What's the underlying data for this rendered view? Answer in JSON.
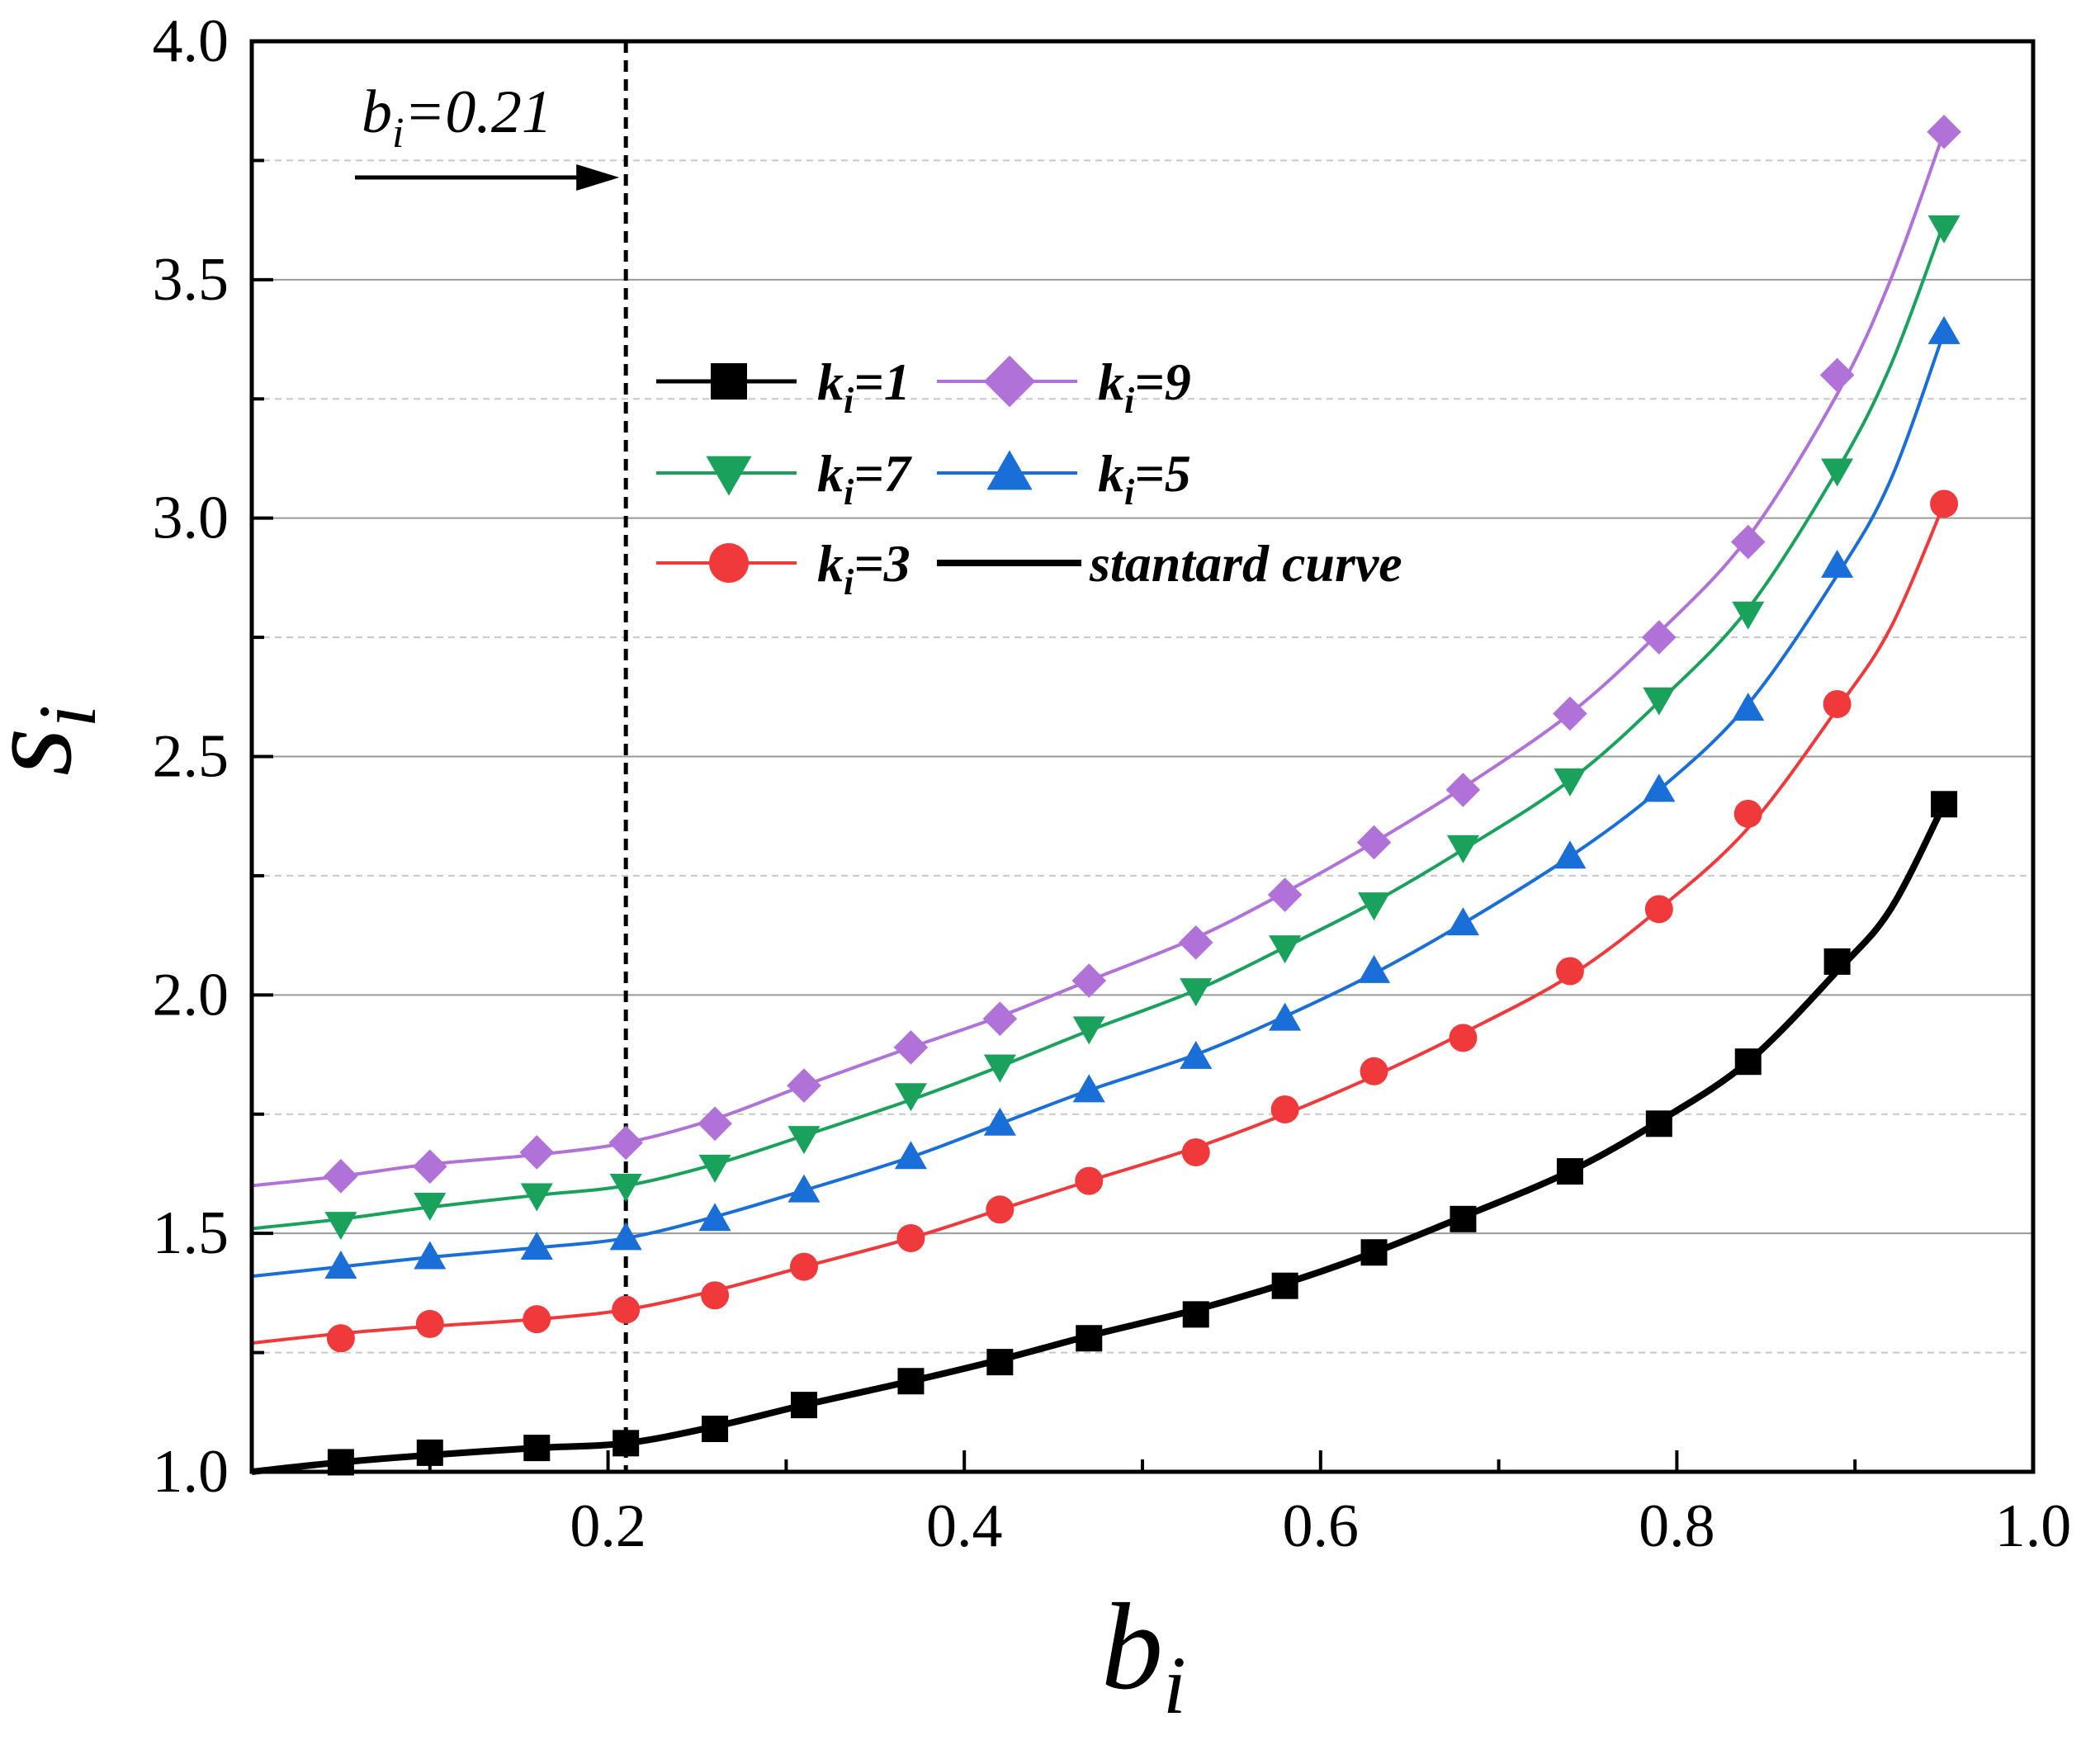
{
  "chart_data": {
    "type": "line",
    "xlabel": "b",
    "xlabel_sub": "i",
    "ylabel": "s",
    "ylabel_sub": "i",
    "xlim": [
      0.0,
      1.0
    ],
    "ylim": [
      1.0,
      4.0
    ],
    "x_ticks": [
      0.2,
      0.4,
      0.6,
      0.8,
      1.0
    ],
    "x_tick_labels": [
      "0.2",
      "0.4",
      "0.6",
      "0.8",
      "1.0"
    ],
    "y_ticks": [
      1.0,
      1.5,
      2.0,
      2.5,
      3.0,
      3.5,
      4.0
    ],
    "y_tick_labels": [
      "1.0",
      "1.5",
      "2.0",
      "2.5",
      "3.0",
      "3.5",
      "4.0"
    ],
    "grid": true,
    "x": [
      0.05,
      0.1,
      0.16,
      0.21,
      0.26,
      0.31,
      0.37,
      0.42,
      0.47,
      0.53,
      0.58,
      0.63,
      0.68,
      0.74,
      0.79,
      0.84,
      0.89,
      0.95
    ],
    "series": [
      {
        "name": "k",
        "sub": "i",
        "label_rest": "=1",
        "color": "#000000",
        "marker": "square",
        "values": [
          1.02,
          1.04,
          1.05,
          1.06,
          1.09,
          1.14,
          1.19,
          1.23,
          1.28,
          1.33,
          1.39,
          1.46,
          1.53,
          1.63,
          1.73,
          1.86,
          2.07,
          2.4
        ],
        "curve": [
          [
            0.0,
            1.0
          ],
          [
            0.05,
            1.02
          ],
          [
            0.1,
            1.035
          ],
          [
            0.16,
            1.05
          ],
          [
            0.21,
            1.06
          ],
          [
            0.26,
            1.095
          ],
          [
            0.31,
            1.14
          ],
          [
            0.37,
            1.19
          ],
          [
            0.42,
            1.235
          ],
          [
            0.47,
            1.285
          ],
          [
            0.53,
            1.34
          ],
          [
            0.58,
            1.395
          ],
          [
            0.63,
            1.46
          ],
          [
            0.68,
            1.535
          ],
          [
            0.74,
            1.63
          ],
          [
            0.79,
            1.735
          ],
          [
            0.84,
            1.86
          ],
          [
            0.89,
            2.05
          ],
          [
            0.92,
            2.18
          ],
          [
            0.95,
            2.4
          ]
        ]
      },
      {
        "name": "k",
        "sub": "i",
        "label_rest": "=3",
        "color": "#f0393a",
        "marker": "circle",
        "values": [
          1.28,
          1.31,
          1.32,
          1.34,
          1.37,
          1.43,
          1.49,
          1.55,
          1.61,
          1.67,
          1.76,
          1.84,
          1.91,
          2.05,
          2.18,
          2.38,
          2.61,
          3.03
        ],
        "curve": [
          [
            0.0,
            1.27
          ],
          [
            0.05,
            1.29
          ],
          [
            0.1,
            1.305
          ],
          [
            0.16,
            1.32
          ],
          [
            0.21,
            1.34
          ],
          [
            0.26,
            1.38
          ],
          [
            0.31,
            1.43
          ],
          [
            0.37,
            1.49
          ],
          [
            0.42,
            1.55
          ],
          [
            0.47,
            1.61
          ],
          [
            0.53,
            1.68
          ],
          [
            0.58,
            1.75
          ],
          [
            0.63,
            1.83
          ],
          [
            0.68,
            1.92
          ],
          [
            0.74,
            2.04
          ],
          [
            0.79,
            2.18
          ],
          [
            0.84,
            2.35
          ],
          [
            0.89,
            2.6
          ],
          [
            0.92,
            2.77
          ],
          [
            0.95,
            3.03
          ]
        ]
      },
      {
        "name": "k",
        "sub": "i",
        "label_rest": "=5",
        "color": "#1a6ed8",
        "marker": "triangle-up",
        "values": [
          1.43,
          1.45,
          1.47,
          1.49,
          1.53,
          1.59,
          1.66,
          1.73,
          1.8,
          1.87,
          1.95,
          2.05,
          2.15,
          2.29,
          2.43,
          2.6,
          2.9,
          3.39
        ],
        "curve": [
          [
            0.0,
            1.41
          ],
          [
            0.05,
            1.43
          ],
          [
            0.1,
            1.45
          ],
          [
            0.16,
            1.47
          ],
          [
            0.21,
            1.49
          ],
          [
            0.26,
            1.535
          ],
          [
            0.31,
            1.59
          ],
          [
            0.37,
            1.66
          ],
          [
            0.42,
            1.73
          ],
          [
            0.47,
            1.8
          ],
          [
            0.53,
            1.875
          ],
          [
            0.58,
            1.955
          ],
          [
            0.63,
            2.045
          ],
          [
            0.68,
            2.15
          ],
          [
            0.74,
            2.29
          ],
          [
            0.79,
            2.43
          ],
          [
            0.84,
            2.61
          ],
          [
            0.89,
            2.88
          ],
          [
            0.92,
            3.08
          ],
          [
            0.95,
            3.39
          ]
        ]
      },
      {
        "name": "k",
        "sub": "i",
        "label_rest": "=7",
        "color": "#1aa25c",
        "marker": "triangle-down",
        "values": [
          1.52,
          1.56,
          1.58,
          1.6,
          1.64,
          1.7,
          1.79,
          1.85,
          1.93,
          2.01,
          2.1,
          2.19,
          2.31,
          2.45,
          2.62,
          2.8,
          3.1,
          3.61
        ],
        "curve": [
          [
            0.0,
            1.51
          ],
          [
            0.05,
            1.53
          ],
          [
            0.1,
            1.555
          ],
          [
            0.16,
            1.58
          ],
          [
            0.21,
            1.6
          ],
          [
            0.26,
            1.645
          ],
          [
            0.31,
            1.705
          ],
          [
            0.37,
            1.78
          ],
          [
            0.42,
            1.85
          ],
          [
            0.47,
            1.925
          ],
          [
            0.53,
            2.01
          ],
          [
            0.58,
            2.1
          ],
          [
            0.63,
            2.195
          ],
          [
            0.68,
            2.305
          ],
          [
            0.74,
            2.45
          ],
          [
            0.79,
            2.615
          ],
          [
            0.84,
            2.81
          ],
          [
            0.89,
            3.1
          ],
          [
            0.92,
            3.32
          ],
          [
            0.95,
            3.62
          ]
        ]
      },
      {
        "name": "k",
        "sub": "i",
        "label_rest": "=9",
        "color": "#b072d8",
        "marker": "diamond",
        "values": [
          1.62,
          1.64,
          1.67,
          1.69,
          1.73,
          1.81,
          1.89,
          1.95,
          2.03,
          2.11,
          2.21,
          2.32,
          2.43,
          2.59,
          2.75,
          2.95,
          3.3,
          3.81
        ],
        "curve": [
          [
            0.0,
            1.6
          ],
          [
            0.05,
            1.62
          ],
          [
            0.1,
            1.645
          ],
          [
            0.16,
            1.665
          ],
          [
            0.21,
            1.69
          ],
          [
            0.26,
            1.74
          ],
          [
            0.31,
            1.81
          ],
          [
            0.37,
            1.89
          ],
          [
            0.42,
            1.955
          ],
          [
            0.47,
            2.03
          ],
          [
            0.53,
            2.12
          ],
          [
            0.58,
            2.215
          ],
          [
            0.63,
            2.32
          ],
          [
            0.68,
            2.435
          ],
          [
            0.74,
            2.59
          ],
          [
            0.79,
            2.76
          ],
          [
            0.84,
            2.96
          ],
          [
            0.89,
            3.26
          ],
          [
            0.92,
            3.5
          ],
          [
            0.95,
            3.81
          ]
        ]
      }
    ],
    "legend": {
      "placement": "upper-center",
      "entries": [
        {
          "series": 0,
          "text": "=1"
        },
        {
          "series": 4,
          "text": "=9"
        },
        {
          "series": 3,
          "text": "=7"
        },
        {
          "series": 2,
          "text": "=5"
        },
        {
          "series": 1,
          "text": "=3"
        },
        {
          "series": null,
          "text": "stantard curve"
        }
      ]
    },
    "annotation": {
      "text_prefix": "b",
      "text_sub": "i",
      "text_rest": "=0.21",
      "x": 0.21
    }
  }
}
